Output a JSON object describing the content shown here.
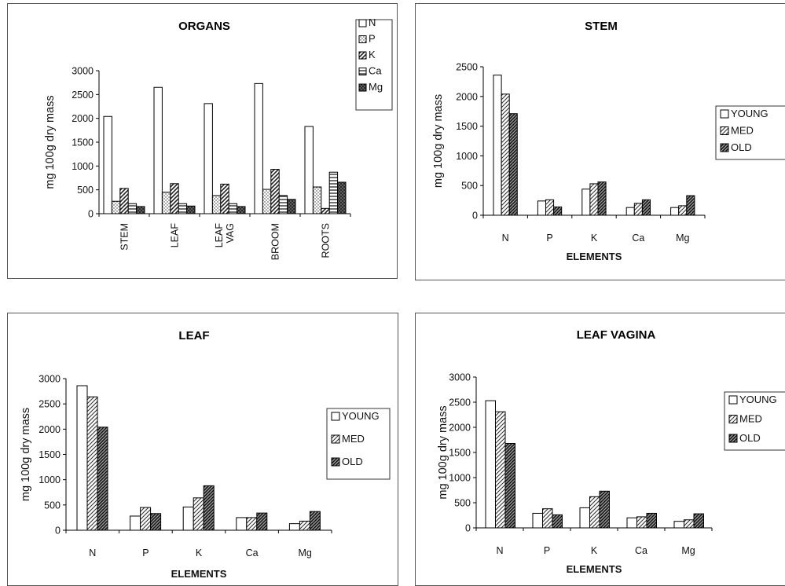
{
  "chart_data": [
    {
      "type": "bar",
      "title": "ORGANS",
      "ylabel": "mg 100g dry mass",
      "xlabel": "",
      "ylim": [
        0,
        3000
      ],
      "yticks": [
        0,
        500,
        1000,
        1500,
        2000,
        2500,
        3000
      ],
      "categories": [
        "STEM",
        "LEAF",
        "LEAF VAG",
        "BROOM",
        "ROOTS"
      ],
      "x_labels_rotated": true,
      "legend_position": "top-right",
      "series": [
        {
          "name": "N",
          "pattern": "blank",
          "values": [
            2040,
            2650,
            2310,
            2730,
            1830
          ]
        },
        {
          "name": "P",
          "pattern": "dots",
          "values": [
            260,
            450,
            380,
            510,
            560
          ]
        },
        {
          "name": "K",
          "pattern": "diag",
          "values": [
            530,
            630,
            620,
            930,
            110
          ]
        },
        {
          "name": "Ca",
          "pattern": "horiz",
          "values": [
            210,
            210,
            210,
            380,
            870
          ]
        },
        {
          "name": "Mg",
          "pattern": "cross",
          "values": [
            150,
            160,
            150,
            300,
            660
          ]
        }
      ]
    },
    {
      "type": "bar",
      "title": "STEM",
      "ylabel": "mg 100g dry mass",
      "xlabel": "ELEMENTS",
      "ylim": [
        0,
        2500
      ],
      "yticks": [
        0,
        500,
        1000,
        1500,
        2000,
        2500
      ],
      "categories": [
        "N",
        "P",
        "K",
        "Ca",
        "Mg"
      ],
      "legend_position": "right",
      "series": [
        {
          "name": "YOUNG",
          "pattern": "blank",
          "values": [
            2360,
            240,
            440,
            130,
            130
          ]
        },
        {
          "name": "MED",
          "pattern": "light",
          "values": [
            2040,
            260,
            530,
            200,
            160
          ]
        },
        {
          "name": "OLD",
          "pattern": "dark",
          "values": [
            1710,
            140,
            560,
            260,
            330
          ]
        }
      ]
    },
    {
      "type": "bar",
      "title": "LEAF",
      "ylabel": "mg 100g dry mass",
      "xlabel": "ELEMENTS",
      "ylim": [
        0,
        3000
      ],
      "yticks": [
        0,
        500,
        1000,
        1500,
        2000,
        2500,
        3000
      ],
      "categories": [
        "N",
        "P",
        "K",
        "Ca",
        "Mg"
      ],
      "legend_position": "right",
      "series": [
        {
          "name": "YOUNG",
          "pattern": "blank",
          "values": [
            2860,
            280,
            460,
            250,
            130
          ]
        },
        {
          "name": "MED",
          "pattern": "light",
          "values": [
            2640,
            450,
            640,
            250,
            180
          ]
        },
        {
          "name": "OLD",
          "pattern": "dark",
          "values": [
            2040,
            330,
            880,
            340,
            370
          ]
        }
      ]
    },
    {
      "type": "bar",
      "title": "LEAF VAGINA",
      "ylabel": "mg 100g dry mass",
      "xlabel": "ELEMENTS",
      "ylim": [
        0,
        3000
      ],
      "yticks": [
        0,
        500,
        1000,
        1500,
        2000,
        2500,
        3000
      ],
      "categories": [
        "N",
        "P",
        "K",
        "Ca",
        "Mg"
      ],
      "legend_position": "right",
      "series": [
        {
          "name": "YOUNG",
          "pattern": "blank",
          "values": [
            2530,
            290,
            400,
            200,
            130
          ]
        },
        {
          "name": "MED",
          "pattern": "light",
          "values": [
            2310,
            380,
            620,
            220,
            160
          ]
        },
        {
          "name": "OLD",
          "pattern": "dark",
          "values": [
            1680,
            260,
            730,
            290,
            280
          ]
        }
      ]
    }
  ]
}
